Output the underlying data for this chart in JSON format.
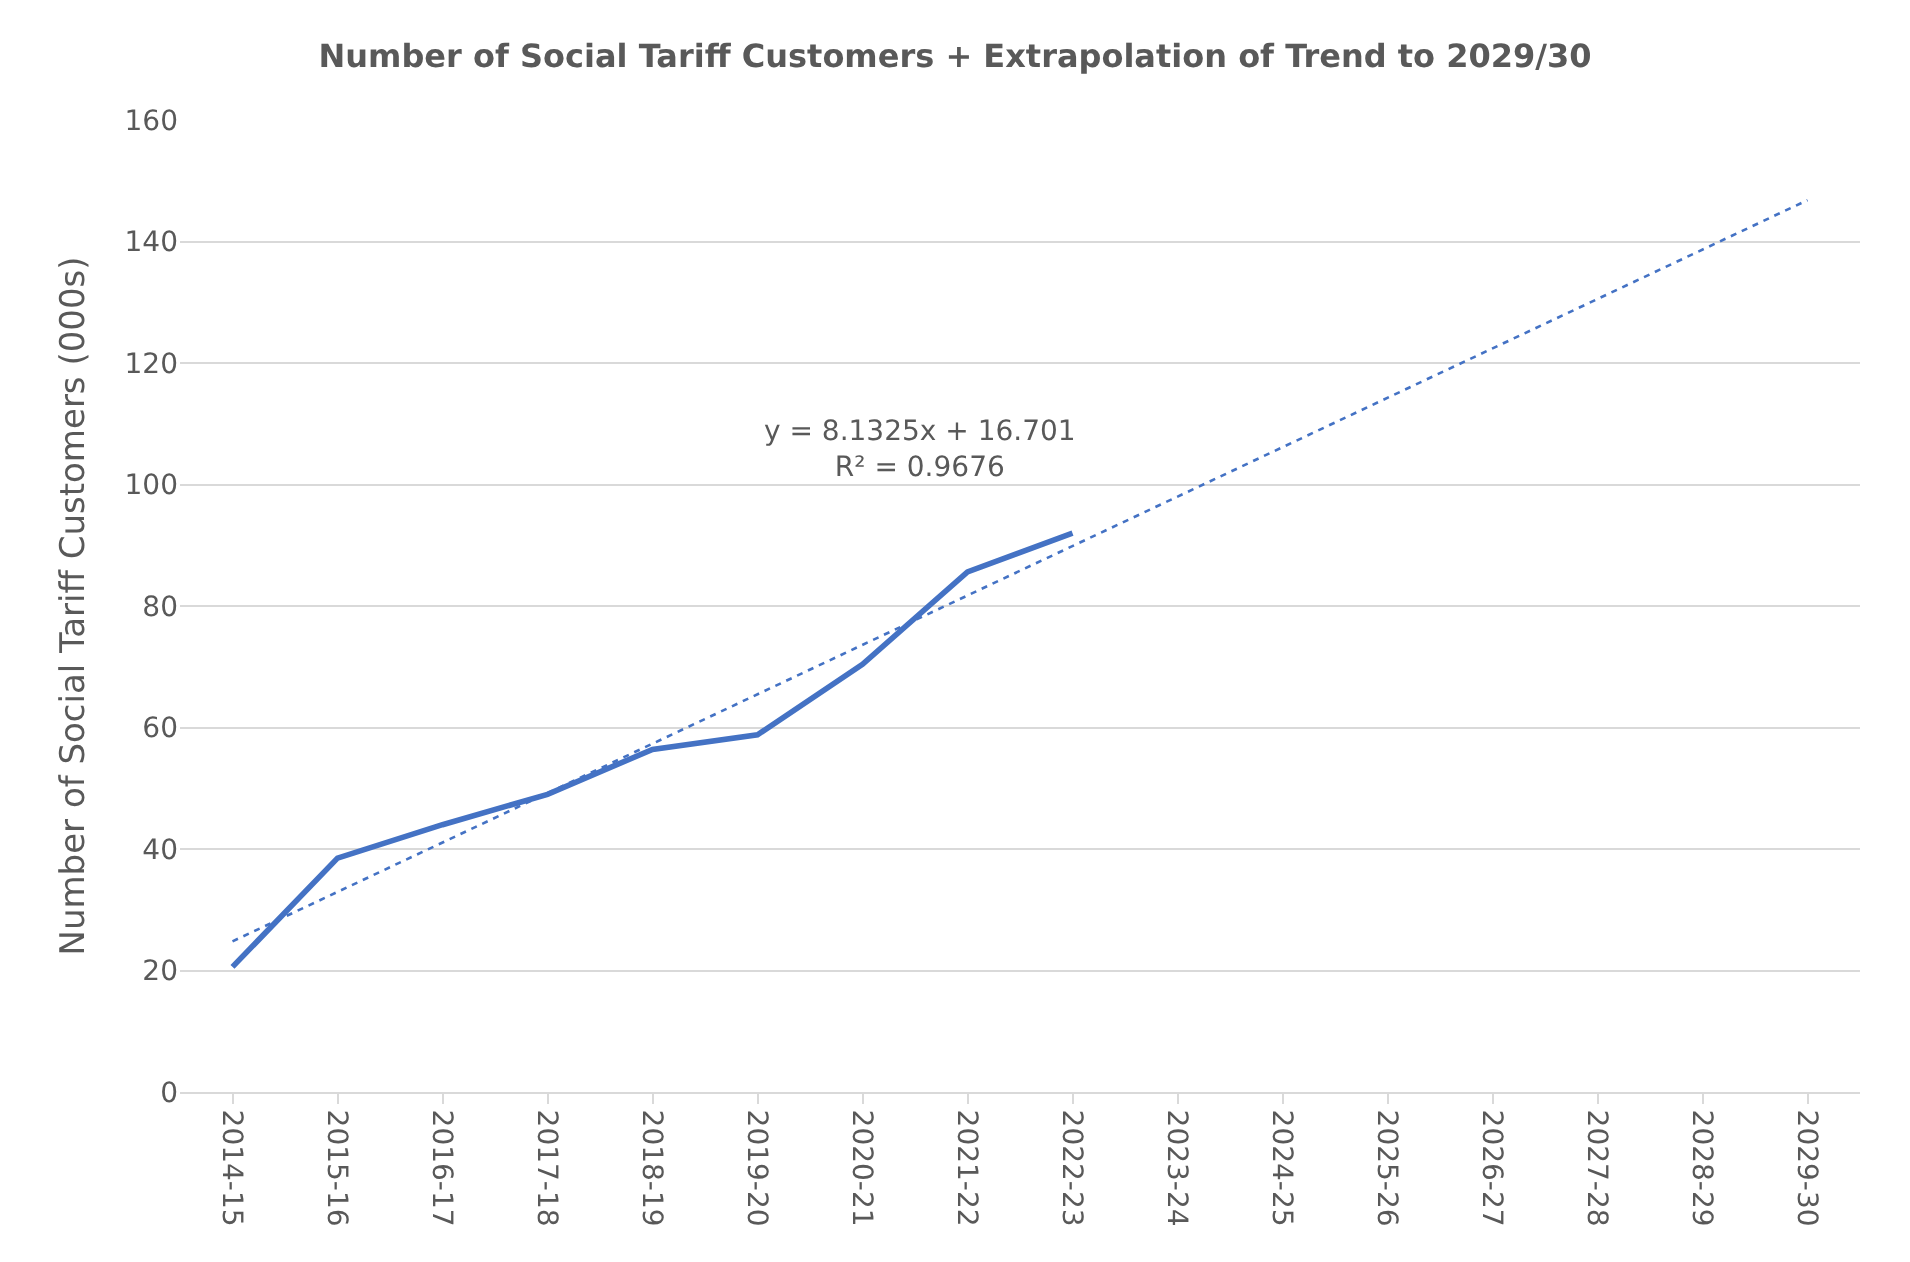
{
  "chart_data": {
    "type": "line",
    "title": "Number of Social Tariff Customers + Extrapolation of Trend to 2029/30",
    "ylabel": "Number of Social Tariff Customers (000s)",
    "categories": [
      "2014-15",
      "2015-16",
      "2016-17",
      "2017-18",
      "2018-19",
      "2019-20",
      "2020-21",
      "2021-22",
      "2022-23",
      "2023-24",
      "2024-25",
      "2025-26",
      "2026-27",
      "2027-28",
      "2028-29",
      "2029-30"
    ],
    "series": [
      {
        "color": "#4472c4",
        "values": [
          20.6,
          38.5,
          44,
          49,
          56.4,
          58.8,
          70.4,
          85.6,
          92,
          null,
          null,
          null,
          null,
          null,
          null,
          null
        ],
        "line_style": "solid"
      },
      {
        "type": "line",
        "color": "#4472c4",
        "x": [
          "2014-15",
          "2029-30"
        ],
        "values": [
          24.8,
          146.8
        ],
        "line_style": "dotted"
      }
    ],
    "annotations": [
      "y = 8.1325x + 16.701\nR² = 0.9676"
    ],
    "ylim": [
      0,
      160
    ],
    "yticks": [
      0,
      20,
      40,
      60,
      80,
      100,
      120,
      140,
      160
    ],
    "grid": "y",
    "marker": "none"
  }
}
